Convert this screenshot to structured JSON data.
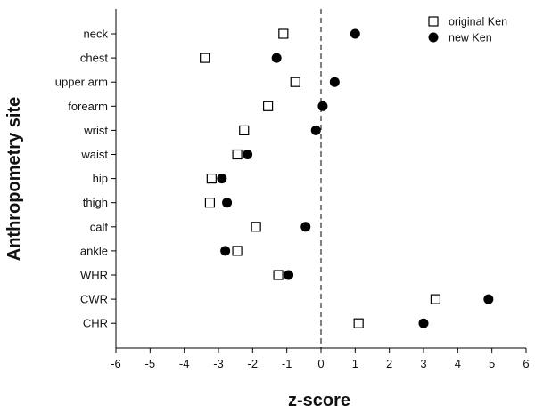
{
  "chart_data": {
    "type": "scatter",
    "orientation": "horizontal-categories",
    "xlabel": "z-score",
    "ylabel": "Anthropometry site",
    "xlim": [
      -6,
      6
    ],
    "xticks": [
      -6,
      -5,
      -4,
      -3,
      -2,
      -1,
      0,
      1,
      2,
      3,
      4,
      5,
      6
    ],
    "reference_line": {
      "x": 0,
      "style": "dashed"
    },
    "categories": [
      "neck",
      "chest",
      "upper arm",
      "forearm",
      "wrist",
      "waist",
      "hip",
      "thigh",
      "calf",
      "ankle",
      "WHR",
      "CWR",
      "CHR"
    ],
    "legend": {
      "placement": "top-right"
    },
    "series": [
      {
        "name": "original Ken",
        "marker": "open-square",
        "color": "#000000",
        "values": [
          -1.1,
          -3.4,
          -0.75,
          -1.55,
          -2.25,
          -2.45,
          -3.2,
          -3.25,
          -1.9,
          -2.45,
          -1.25,
          3.35,
          1.1
        ]
      },
      {
        "name": "new Ken",
        "marker": "filled-circle",
        "color": "#000000",
        "values": [
          1.0,
          -1.3,
          0.4,
          0.05,
          -0.15,
          -2.15,
          -2.9,
          -2.75,
          -0.45,
          -2.8,
          -0.95,
          4.9,
          3.0
        ]
      }
    ]
  }
}
